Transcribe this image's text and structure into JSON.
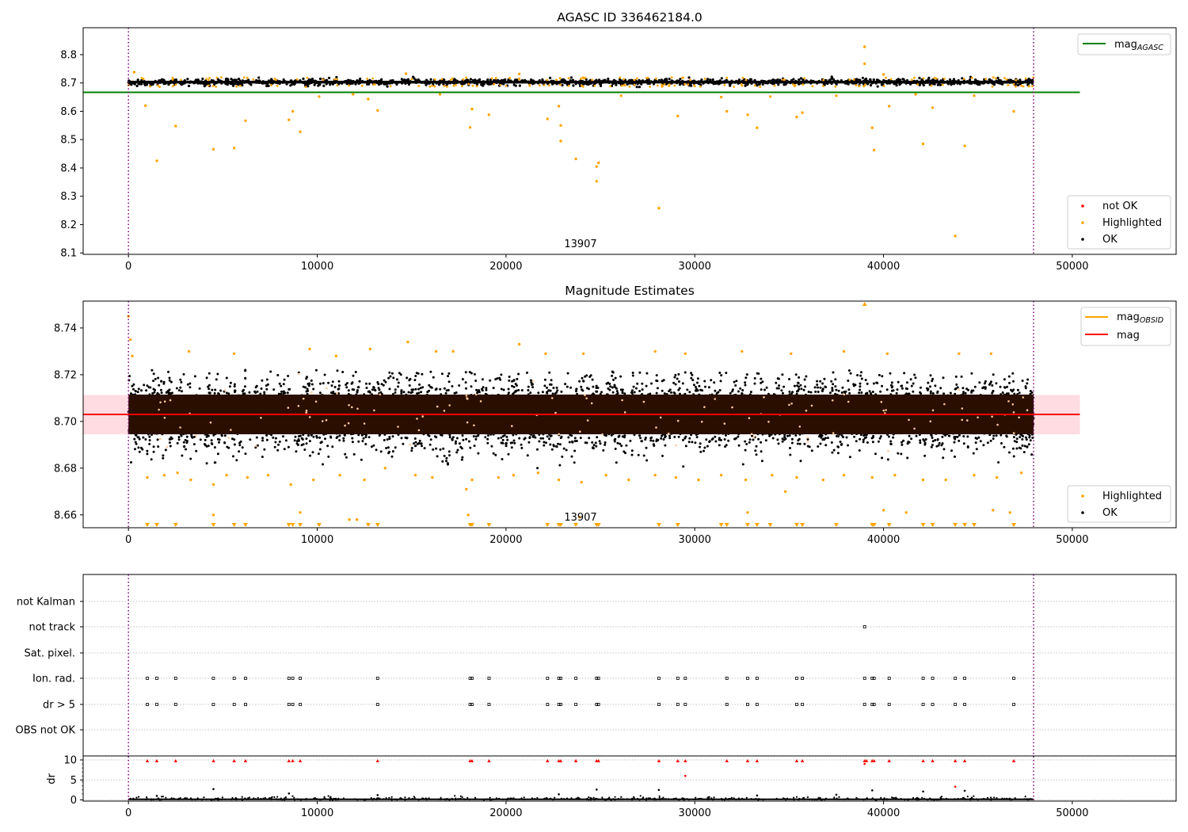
{
  "chart_data": [
    {
      "type": "scatter",
      "title": "AGASC ID 336462184.0",
      "annotation": "13907",
      "xlim": [
        -2400,
        55500
      ],
      "ylim": [
        8.095,
        8.895
      ],
      "xticks": [
        0,
        10000,
        20000,
        30000,
        40000,
        50000
      ],
      "xtick_labels": [
        "0",
        "10000",
        "20000",
        "30000",
        "40000",
        "50000"
      ],
      "yticks": [
        8.1,
        8.2,
        8.3,
        8.4,
        8.5,
        8.6,
        8.7,
        8.8
      ],
      "ytick_labels": [
        "8.1",
        "8.2",
        "8.3",
        "8.4",
        "8.5",
        "8.6",
        "8.7",
        "8.8"
      ],
      "vlines": [
        0,
        47950
      ],
      "hline": {
        "label": "magAGASC",
        "label_main": "mag",
        "label_sub": "AGASC",
        "y": 8.667,
        "x": [
          -2400,
          50400
        ],
        "color": "#008000"
      },
      "ok_band": {
        "center": 8.703,
        "halfwidth": 0.009
      },
      "highlighted_points": [
        {
          "x": 900,
          "y": 8.62
        },
        {
          "x": 1500,
          "y": 8.425
        },
        {
          "x": 2500,
          "y": 8.548
        },
        {
          "x": 4500,
          "y": 8.466
        },
        {
          "x": 5600,
          "y": 8.47
        },
        {
          "x": 6200,
          "y": 8.567
        },
        {
          "x": 8500,
          "y": 8.57
        },
        {
          "x": 8700,
          "y": 8.6
        },
        {
          "x": 9100,
          "y": 8.528
        },
        {
          "x": 13200,
          "y": 8.603
        },
        {
          "x": 12700,
          "y": 8.643
        },
        {
          "x": 18100,
          "y": 8.543
        },
        {
          "x": 18200,
          "y": 8.608
        },
        {
          "x": 19100,
          "y": 8.588
        },
        {
          "x": 22200,
          "y": 8.573
        },
        {
          "x": 22800,
          "y": 8.618
        },
        {
          "x": 22900,
          "y": 8.55
        },
        {
          "x": 22900,
          "y": 8.495
        },
        {
          "x": 23700,
          "y": 8.432
        },
        {
          "x": 24800,
          "y": 8.405
        },
        {
          "x": 24900,
          "y": 8.418
        },
        {
          "x": 24800,
          "y": 8.353
        },
        {
          "x": 28100,
          "y": 8.258
        },
        {
          "x": 29100,
          "y": 8.583
        },
        {
          "x": 31700,
          "y": 8.6
        },
        {
          "x": 32800,
          "y": 8.588
        },
        {
          "x": 33300,
          "y": 8.542
        },
        {
          "x": 35400,
          "y": 8.58
        },
        {
          "x": 35700,
          "y": 8.595
        },
        {
          "x": 39000,
          "y": 8.828
        },
        {
          "x": 39000,
          "y": 8.768
        },
        {
          "x": 39400,
          "y": 8.542
        },
        {
          "x": 39500,
          "y": 8.463
        },
        {
          "x": 40300,
          "y": 8.618
        },
        {
          "x": 42100,
          "y": 8.485
        },
        {
          "x": 42600,
          "y": 8.613
        },
        {
          "x": 43800,
          "y": 8.16
        },
        {
          "x": 44300,
          "y": 8.478
        },
        {
          "x": 46900,
          "y": 8.6
        },
        {
          "x": 31400,
          "y": 8.65
        },
        {
          "x": 34000,
          "y": 8.652
        },
        {
          "x": 37500,
          "y": 8.655
        },
        {
          "x": 10100,
          "y": 8.652
        },
        {
          "x": 11900,
          "y": 8.66
        },
        {
          "x": 16500,
          "y": 8.66
        },
        {
          "x": 26100,
          "y": 8.655
        },
        {
          "x": 41700,
          "y": 8.66
        },
        {
          "x": 44800,
          "y": 8.655
        },
        {
          "x": 300,
          "y": 8.738
        },
        {
          "x": 14700,
          "y": 8.733
        },
        {
          "x": 20700,
          "y": 8.732
        },
        {
          "x": 40000,
          "y": 8.73
        }
      ],
      "legend": {
        "entries": [
          "not OK",
          "Highlighted",
          "OK"
        ],
        "colors": [
          "#ff0000",
          "#ffa500",
          "#000000"
        ],
        "placement": "lower right"
      }
    },
    {
      "type": "scatter",
      "title": "Magnitude Estimates",
      "annotation": "13907",
      "xlim": [
        -2400,
        55500
      ],
      "ylim": [
        8.6545,
        8.7515
      ],
      "xticks": [
        0,
        10000,
        20000,
        30000,
        40000,
        50000
      ],
      "xtick_labels": [
        "0",
        "10000",
        "20000",
        "30000",
        "40000",
        "50000"
      ],
      "yticks": [
        8.66,
        8.68,
        8.7,
        8.72,
        8.74
      ],
      "ytick_labels": [
        "8.66",
        "8.68",
        "8.70",
        "8.72",
        "8.74"
      ],
      "vlines": [
        0,
        47950
      ],
      "mag_line": {
        "y": 8.703,
        "x": [
          -2400,
          50400
        ],
        "color": "#ff0000"
      },
      "mag_band": {
        "y0": 8.6945,
        "y1": 8.7113,
        "color": "#ffc0cb"
      },
      "mag_obsid_line": {
        "y": 8.703,
        "color": "#ffa500"
      },
      "ok_band": {
        "center": 8.703,
        "halfwidth": 0.0085
      },
      "ok_spread": {
        "low": 8.68,
        "high": 8.722
      },
      "highlighted_points": [
        {
          "x": 0,
          "y": 8.745
        },
        {
          "x": 100,
          "y": 8.735
        },
        {
          "x": 200,
          "y": 8.728
        },
        {
          "x": 3200,
          "y": 8.73
        },
        {
          "x": 5600,
          "y": 8.729
        },
        {
          "x": 9600,
          "y": 8.731
        },
        {
          "x": 11000,
          "y": 8.728
        },
        {
          "x": 12800,
          "y": 8.731
        },
        {
          "x": 14800,
          "y": 8.734
        },
        {
          "x": 16300,
          "y": 8.73
        },
        {
          "x": 17200,
          "y": 8.73
        },
        {
          "x": 20700,
          "y": 8.733
        },
        {
          "x": 22100,
          "y": 8.729
        },
        {
          "x": 24100,
          "y": 8.729
        },
        {
          "x": 27900,
          "y": 8.73
        },
        {
          "x": 29500,
          "y": 8.729
        },
        {
          "x": 32500,
          "y": 8.73
        },
        {
          "x": 35100,
          "y": 8.729
        },
        {
          "x": 37900,
          "y": 8.73
        },
        {
          "x": 40200,
          "y": 8.729
        },
        {
          "x": 44000,
          "y": 8.729
        },
        {
          "x": 45700,
          "y": 8.729
        },
        {
          "x": 1000,
          "y": 8.676
        },
        {
          "x": 1900,
          "y": 8.677
        },
        {
          "x": 2600,
          "y": 8.678
        },
        {
          "x": 3300,
          "y": 8.675
        },
        {
          "x": 4500,
          "y": 8.673
        },
        {
          "x": 5200,
          "y": 8.677
        },
        {
          "x": 6300,
          "y": 8.676
        },
        {
          "x": 7400,
          "y": 8.677
        },
        {
          "x": 8600,
          "y": 8.673
        },
        {
          "x": 9800,
          "y": 8.675
        },
        {
          "x": 11200,
          "y": 8.677
        },
        {
          "x": 12500,
          "y": 8.675
        },
        {
          "x": 13600,
          "y": 8.68
        },
        {
          "x": 15200,
          "y": 8.677
        },
        {
          "x": 16100,
          "y": 8.676
        },
        {
          "x": 17900,
          "y": 8.671
        },
        {
          "x": 18200,
          "y": 8.675
        },
        {
          "x": 19600,
          "y": 8.676
        },
        {
          "x": 20400,
          "y": 8.677
        },
        {
          "x": 21700,
          "y": 8.678
        },
        {
          "x": 22800,
          "y": 8.675
        },
        {
          "x": 24000,
          "y": 8.674
        },
        {
          "x": 25300,
          "y": 8.677
        },
        {
          "x": 26500,
          "y": 8.675
        },
        {
          "x": 27900,
          "y": 8.677
        },
        {
          "x": 29000,
          "y": 8.676
        },
        {
          "x": 30200,
          "y": 8.675
        },
        {
          "x": 31400,
          "y": 8.677
        },
        {
          "x": 32700,
          "y": 8.675
        },
        {
          "x": 34100,
          "y": 8.677
        },
        {
          "x": 35400,
          "y": 8.676
        },
        {
          "x": 36800,
          "y": 8.675
        },
        {
          "x": 37900,
          "y": 8.677
        },
        {
          "x": 39400,
          "y": 8.676
        },
        {
          "x": 40600,
          "y": 8.677
        },
        {
          "x": 42100,
          "y": 8.675
        },
        {
          "x": 43300,
          "y": 8.675
        },
        {
          "x": 44800,
          "y": 8.677
        },
        {
          "x": 46000,
          "y": 8.676
        },
        {
          "x": 47300,
          "y": 8.678
        },
        {
          "x": 4500,
          "y": 8.66
        },
        {
          "x": 9100,
          "y": 8.661
        },
        {
          "x": 11700,
          "y": 8.658
        },
        {
          "x": 12100,
          "y": 8.658
        },
        {
          "x": 18000,
          "y": 8.66
        },
        {
          "x": 32800,
          "y": 8.661
        },
        {
          "x": 34800,
          "y": 8.67
        },
        {
          "x": 40000,
          "y": 8.662
        },
        {
          "x": 41200,
          "y": 8.661
        },
        {
          "x": 45800,
          "y": 8.662
        },
        {
          "x": 46700,
          "y": 8.661
        },
        {
          "x": 23900,
          "y": 8.659
        }
      ],
      "clipped_low_x": [
        1000,
        1500,
        2500,
        4500,
        5600,
        6200,
        8500,
        8700,
        9100,
        10100,
        12700,
        13200,
        18100,
        18200,
        19100,
        22200,
        22800,
        22900,
        23700,
        24800,
        24900,
        28100,
        29100,
        31400,
        31700,
        32800,
        33300,
        34000,
        35400,
        35700,
        37500,
        39400,
        39500,
        40300,
        42100,
        42600,
        43800,
        44300,
        44800,
        46900
      ],
      "clipped_high_x": [
        39000
      ],
      "legend_top": {
        "entries": [
          "magOBSID",
          "mag"
        ],
        "main": [
          "mag",
          "mag"
        ],
        "sub": [
          "OBSID",
          ""
        ],
        "colors": [
          "#ffa500",
          "#ff0000"
        ],
        "placement": "upper right"
      },
      "legend_bottom": {
        "entries": [
          "Highlighted",
          "OK"
        ],
        "colors": [
          "#ffa500",
          "#000000"
        ],
        "placement": "lower right"
      }
    },
    {
      "type": "scatter",
      "title": "",
      "xlim": [
        -2400,
        55500
      ],
      "xticks": [
        0,
        10000,
        20000,
        30000,
        40000,
        50000
      ],
      "xtick_labels": [
        "0",
        "10000",
        "20000",
        "30000",
        "40000",
        "50000"
      ],
      "vlines": [
        0,
        47950
      ],
      "flag_rows": [
        "not Kalman",
        "not track",
        "Sat. pixel.",
        "Ion. rad.",
        "dr > 5",
        "OBS not OK"
      ],
      "flag_events": {
        "not track": [
          39000
        ],
        "Ion. rad.": [
          1000,
          1500,
          2500,
          4500,
          5600,
          6200,
          8500,
          8700,
          9100,
          13200,
          18100,
          18200,
          19100,
          22200,
          22800,
          22900,
          23700,
          24800,
          24900,
          28100,
          29100,
          29500,
          31700,
          32800,
          33300,
          35400,
          35700,
          39000,
          39400,
          39500,
          40300,
          42100,
          42600,
          43800,
          44300,
          46900
        ],
        "dr > 5": [
          1000,
          1500,
          2500,
          4500,
          5600,
          6200,
          8500,
          8700,
          9100,
          13200,
          18100,
          18200,
          19100,
          22200,
          22800,
          22900,
          23700,
          24800,
          24900,
          28100,
          29100,
          29500,
          31700,
          32800,
          33300,
          35400,
          35700,
          39000,
          39400,
          39500,
          40300,
          42100,
          42600,
          43800,
          44300,
          46900
        ]
      },
      "dr": {
        "ylabel": "dr",
        "ylim": [
          -0.3,
          10.6
        ],
        "yticks": [
          0,
          5,
          10
        ],
        "ytick_labels": [
          "0",
          "5",
          "10"
        ],
        "clipped_x": [
          1000,
          1500,
          2500,
          4500,
          5600,
          6200,
          8500,
          8700,
          9100,
          13200,
          18100,
          18200,
          19100,
          22200,
          22800,
          22900,
          23700,
          24800,
          24900,
          28100,
          29100,
          29500,
          31700,
          32800,
          33300,
          35400,
          35700,
          39000,
          39100,
          39400,
          39500,
          40300,
          42100,
          42600,
          43800,
          44300,
          46900
        ],
        "red_points": [
          {
            "x": 29500,
            "y": 6.0
          },
          {
            "x": 43800,
            "y": 3.3
          },
          {
            "x": 39000,
            "y": 9.0
          }
        ],
        "black_points": [
          {
            "x": 4500,
            "y": 2.7
          },
          {
            "x": 24800,
            "y": 2.6
          },
          {
            "x": 28100,
            "y": 2.5
          },
          {
            "x": 39400,
            "y": 2.4
          },
          {
            "x": 42100,
            "y": 2.1
          },
          {
            "x": 44300,
            "y": 2.3
          },
          {
            "x": 8500,
            "y": 1.6
          },
          {
            "x": 22800,
            "y": 1.4
          },
          {
            "x": 13200,
            "y": 1.2
          },
          {
            "x": 33300,
            "y": 1.1
          },
          {
            "x": 1500,
            "y": 1.0
          },
          {
            "x": 37500,
            "y": 1.3
          }
        ]
      }
    }
  ]
}
